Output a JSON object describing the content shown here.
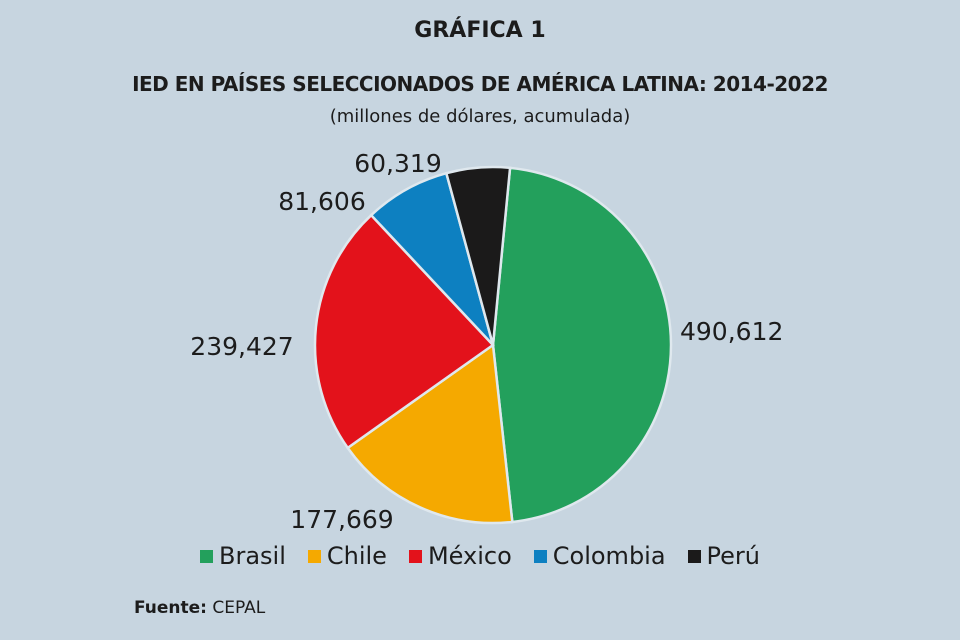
{
  "title": "GRÁFICA 1",
  "chart_data": {
    "type": "pie",
    "title": "IED EN PAÍSES SELECCIONADOS DE AMÉRICA LATINA: 2014-2022",
    "subtitle": "(millones de dólares, acumulada)",
    "categories": [
      "Brasil",
      "Chile",
      "México",
      "Colombia",
      "Perú"
    ],
    "values": [
      490612,
      177669,
      239427,
      81606,
      60319
    ],
    "labels": [
      "490,612",
      "177,669",
      "239,427",
      "81,606",
      "60,319"
    ],
    "colors": [
      "#23a05c",
      "#f5a900",
      "#e3121b",
      "#0d80c1",
      "#1b1a1a"
    ],
    "legend_position": "bottom"
  },
  "source": {
    "label": "Fuente:",
    "value": "CEPAL"
  }
}
